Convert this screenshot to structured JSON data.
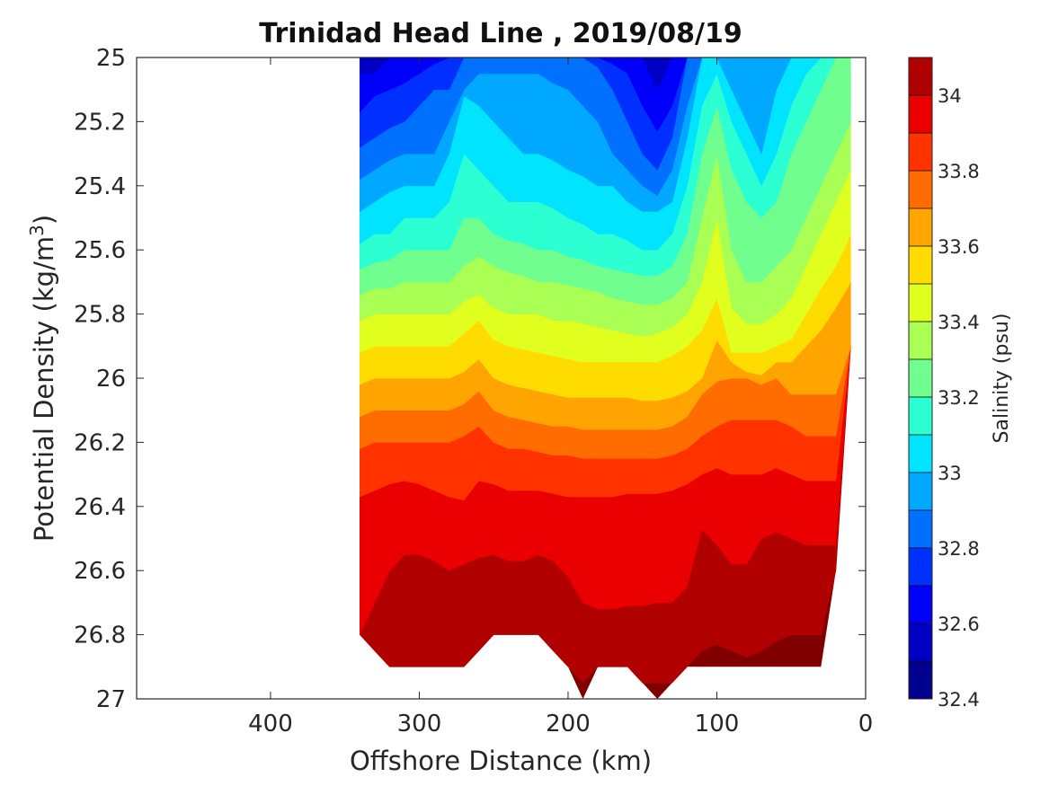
{
  "chart_data": {
    "type": "heatmap",
    "subtype": "filled-contour",
    "title": "Trinidad Head Line , 2019/08/19",
    "xlabel": "Offshore Distance (km)",
    "ylabel": "Potential Density (kg/m",
    "ylabel_sup": "3",
    "ylabel_close": ")",
    "xlim": [
      490,
      0
    ],
    "x_reversed": true,
    "ylim": [
      25,
      27
    ],
    "y_reversed": true,
    "xticks": [
      400,
      300,
      200,
      100,
      0
    ],
    "yticks": [
      "25",
      "25.2",
      "25.4",
      "25.6",
      "25.8",
      "26",
      "26.2",
      "26.4",
      "26.6",
      "26.8",
      "27"
    ],
    "colorbar": {
      "label": "Salinity (psu)",
      "range": [
        32.4,
        34.1
      ],
      "ticks": [
        "32.4",
        "32.6",
        "32.8",
        "33",
        "33.2",
        "33.4",
        "33.6",
        "33.8",
        "34"
      ],
      "levels": [
        {
          "from": 32.4,
          "to": 32.5,
          "color": "#00008f"
        },
        {
          "from": 32.5,
          "to": 32.6,
          "color": "#0000c4"
        },
        {
          "from": 32.6,
          "to": 32.7,
          "color": "#0000fa"
        },
        {
          "from": 32.7,
          "to": 32.8,
          "color": "#0030ff"
        },
        {
          "from": 32.8,
          "to": 32.9,
          "color": "#0070ff"
        },
        {
          "from": 32.9,
          "to": 33.0,
          "color": "#00a8ff"
        },
        {
          "from": 33.0,
          "to": 33.1,
          "color": "#00e4ff"
        },
        {
          "from": 33.1,
          "to": 33.2,
          "color": "#2cffd2"
        },
        {
          "from": 33.2,
          "to": 33.3,
          "color": "#70ff8e"
        },
        {
          "from": 33.3,
          "to": 33.4,
          "color": "#aaff54"
        },
        {
          "from": 33.4,
          "to": 33.5,
          "color": "#e0ff1e"
        },
        {
          "from": 33.5,
          "to": 33.6,
          "color": "#ffdc00"
        },
        {
          "from": 33.6,
          "to": 33.7,
          "color": "#ffa400"
        },
        {
          "from": 33.7,
          "to": 33.8,
          "color": "#ff6c00"
        },
        {
          "from": 33.8,
          "to": 33.9,
          "color": "#ff3200"
        },
        {
          "from": 33.9,
          "to": 34.0,
          "color": "#ea0000"
        },
        {
          "from": 34.0,
          "to": 34.1,
          "color": "#b00000"
        }
      ],
      "deep_color": "#800000"
    },
    "section": {
      "distances_km": [
        340,
        330,
        320,
        310,
        300,
        290,
        280,
        270,
        260,
        250,
        240,
        230,
        220,
        210,
        200,
        190,
        180,
        170,
        160,
        150,
        140,
        130,
        120,
        110,
        100,
        90,
        80,
        70,
        60,
        50,
        40,
        30,
        20,
        10
      ],
      "bottom_density": [
        26.8,
        26.85,
        26.9,
        26.9,
        26.9,
        26.9,
        26.9,
        26.9,
        26.85,
        26.8,
        26.8,
        26.8,
        26.8,
        26.85,
        26.9,
        27.0,
        26.9,
        26.9,
        26.9,
        26.95,
        27.0,
        26.95,
        26.9,
        26.9,
        26.9,
        26.9,
        26.9,
        26.9,
        26.9,
        26.9,
        26.9,
        26.9,
        26.6,
        25.9
      ],
      "top_density": [
        25.0,
        25.0,
        25.0,
        25.0,
        25.0,
        25.0,
        25.0,
        25.0,
        25.0,
        25.0,
        25.0,
        25.0,
        25.0,
        25.0,
        25.0,
        25.0,
        25.0,
        25.0,
        25.0,
        25.0,
        25.0,
        25.0,
        25.0,
        25.0,
        25.0,
        25.0,
        25.0,
        25.0,
        25.0,
        25.0,
        25.0,
        25.0,
        25.0,
        25.0
      ],
      "isohalines": [
        {
          "psu": 32.6,
          "density": [
            25.05,
            25.05,
            25.0,
            25.0,
            25.0,
            25.0,
            25.0,
            25.0,
            25.0,
            25.0,
            25.0,
            25.0,
            25.0,
            25.0,
            25.0,
            25.0,
            25.0,
            25.0,
            25.0,
            25.0,
            25.1,
            25.0,
            25.0,
            25.0,
            25.0,
            25.0,
            25.0,
            25.0,
            25.0,
            25.0,
            25.0,
            25.0,
            25.0,
            25.0
          ]
        },
        {
          "psu": 32.7,
          "density": [
            25.17,
            25.12,
            25.1,
            25.08,
            25.05,
            25.02,
            25.0,
            25.0,
            25.0,
            25.0,
            25.0,
            25.0,
            25.0,
            25.0,
            25.0,
            25.0,
            25.0,
            25.02,
            25.05,
            25.15,
            25.23,
            25.15,
            25.0,
            25.0,
            25.0,
            25.0,
            25.0,
            25.0,
            25.0,
            25.0,
            25.0,
            25.0,
            25.0,
            25.0
          ]
        },
        {
          "psu": 32.8,
          "density": [
            25.28,
            25.25,
            25.22,
            25.2,
            25.15,
            25.1,
            25.1,
            25.0,
            25.0,
            25.0,
            25.0,
            25.0,
            25.0,
            25.0,
            25.0,
            25.0,
            25.03,
            25.1,
            25.2,
            25.3,
            25.35,
            25.25,
            25.0,
            25.0,
            25.0,
            25.0,
            25.0,
            25.0,
            25.0,
            25.0,
            25.0,
            25.0,
            25.0,
            25.0
          ]
        },
        {
          "psu": 32.9,
          "density": [
            25.38,
            25.35,
            25.32,
            25.3,
            25.3,
            25.3,
            25.2,
            25.1,
            25.05,
            25.05,
            25.05,
            25.05,
            25.05,
            25.08,
            25.1,
            25.15,
            25.2,
            25.3,
            25.35,
            25.4,
            25.43,
            25.35,
            25.15,
            25.0,
            25.0,
            25.0,
            25.0,
            25.0,
            25.0,
            25.0,
            25.0,
            25.0,
            25.0,
            25.0
          ]
        },
        {
          "psu": 33.0,
          "density": [
            25.48,
            25.45,
            25.42,
            25.4,
            25.4,
            25.4,
            25.3,
            25.12,
            25.15,
            25.2,
            25.25,
            25.3,
            25.3,
            25.32,
            25.35,
            25.37,
            25.4,
            25.4,
            25.45,
            25.48,
            25.48,
            25.45,
            25.25,
            25.0,
            25.0,
            25.1,
            25.2,
            25.3,
            25.1,
            25.0,
            25.0,
            25.0,
            25.0,
            25.0
          ]
        },
        {
          "psu": 33.1,
          "density": [
            25.58,
            25.55,
            25.55,
            25.5,
            25.5,
            25.5,
            25.45,
            25.3,
            25.35,
            25.4,
            25.45,
            25.45,
            25.45,
            25.47,
            25.5,
            25.52,
            25.55,
            25.55,
            25.57,
            25.6,
            25.6,
            25.55,
            25.4,
            25.15,
            25.05,
            25.2,
            25.3,
            25.4,
            25.3,
            25.15,
            25.05,
            25.0,
            25.0,
            25.0
          ]
        },
        {
          "psu": 33.2,
          "density": [
            25.66,
            25.64,
            25.63,
            25.6,
            25.6,
            25.6,
            25.6,
            25.5,
            25.5,
            25.55,
            25.57,
            25.58,
            25.6,
            25.6,
            25.62,
            25.63,
            25.65,
            25.66,
            25.67,
            25.68,
            25.68,
            25.65,
            25.55,
            25.3,
            25.15,
            25.35,
            25.45,
            25.5,
            25.45,
            25.3,
            25.2,
            25.1,
            25.0,
            25.0
          ]
        },
        {
          "psu": 33.3,
          "density": [
            25.74,
            25.72,
            25.72,
            25.7,
            25.7,
            25.7,
            25.7,
            25.65,
            25.62,
            25.65,
            25.67,
            25.68,
            25.7,
            25.7,
            25.71,
            25.72,
            25.73,
            25.75,
            25.76,
            25.77,
            25.77,
            25.75,
            25.7,
            25.5,
            25.3,
            25.6,
            25.7,
            25.7,
            25.65,
            25.6,
            25.5,
            25.4,
            25.3,
            25.2
          ]
        },
        {
          "psu": 33.4,
          "density": [
            25.82,
            25.8,
            25.8,
            25.8,
            25.8,
            25.8,
            25.8,
            25.76,
            25.74,
            25.78,
            25.8,
            25.8,
            25.8,
            25.82,
            25.82,
            25.83,
            25.84,
            25.85,
            25.86,
            25.87,
            25.86,
            25.84,
            25.8,
            25.7,
            25.5,
            25.78,
            25.83,
            25.83,
            25.8,
            25.75,
            25.65,
            25.55,
            25.45,
            25.35
          ]
        },
        {
          "psu": 33.5,
          "density": [
            25.92,
            25.9,
            25.9,
            25.9,
            25.9,
            25.9,
            25.9,
            25.86,
            25.82,
            25.88,
            25.9,
            25.91,
            25.92,
            25.93,
            25.94,
            25.95,
            25.95,
            25.95,
            25.95,
            25.95,
            25.95,
            25.93,
            25.9,
            25.85,
            25.75,
            25.92,
            25.92,
            25.92,
            25.9,
            25.88,
            25.8,
            25.72,
            25.65,
            25.55
          ]
        },
        {
          "psu": 33.6,
          "density": [
            26.02,
            26.0,
            26.0,
            26.0,
            26.0,
            26.0,
            26.0,
            25.98,
            25.94,
            26.0,
            26.02,
            26.03,
            26.04,
            26.05,
            26.06,
            26.06,
            26.06,
            26.06,
            26.06,
            26.07,
            26.07,
            26.06,
            26.04,
            26.0,
            25.88,
            25.95,
            25.98,
            25.99,
            25.95,
            25.95,
            25.9,
            25.85,
            25.78,
            25.7
          ]
        },
        {
          "psu": 33.7,
          "density": [
            26.12,
            26.1,
            26.1,
            26.1,
            26.1,
            26.1,
            26.1,
            26.08,
            26.04,
            26.1,
            26.12,
            26.13,
            26.14,
            26.15,
            26.15,
            26.16,
            26.16,
            26.16,
            26.16,
            26.16,
            26.16,
            26.15,
            26.12,
            26.05,
            26.01,
            26.0,
            26.0,
            26.02,
            26.0,
            26.05,
            26.05,
            26.05,
            26.05,
            26.0
          ]
        },
        {
          "psu": 33.8,
          "density": [
            26.22,
            26.2,
            26.2,
            26.2,
            26.2,
            26.2,
            26.2,
            26.18,
            26.15,
            26.2,
            26.22,
            26.22,
            26.23,
            26.24,
            26.24,
            26.25,
            26.25,
            26.25,
            26.25,
            26.25,
            26.25,
            26.24,
            26.22,
            26.18,
            26.15,
            26.13,
            26.13,
            26.13,
            26.13,
            26.15,
            26.18,
            26.18,
            26.18,
            26.18
          ]
        },
        {
          "psu": 33.9,
          "density": [
            26.37,
            26.35,
            26.33,
            26.32,
            26.33,
            26.35,
            26.37,
            26.38,
            26.32,
            26.33,
            26.35,
            26.35,
            26.35,
            26.36,
            26.37,
            26.37,
            26.37,
            26.37,
            26.36,
            26.36,
            26.36,
            26.35,
            26.33,
            26.3,
            26.28,
            26.3,
            26.3,
            26.3,
            26.28,
            26.3,
            26.32,
            26.32,
            26.32,
            26.32
          ]
        },
        {
          "psu": 34.0,
          "density": [
            26.8,
            26.7,
            26.6,
            26.55,
            26.55,
            26.57,
            26.6,
            26.58,
            26.56,
            26.55,
            26.57,
            26.57,
            26.55,
            26.57,
            26.62,
            26.7,
            26.72,
            26.72,
            26.71,
            26.71,
            26.7,
            26.7,
            26.65,
            26.47,
            26.52,
            26.58,
            26.58,
            26.5,
            26.48,
            26.5,
            26.52,
            26.52,
            26.52,
            26.52
          ]
        },
        {
          "psu": 34.1,
          "density": [
            26.95,
            26.95,
            26.95,
            26.95,
            26.95,
            26.95,
            26.95,
            26.95,
            26.95,
            26.95,
            26.95,
            26.95,
            26.95,
            26.95,
            26.95,
            26.95,
            26.95,
            26.95,
            26.95,
            26.95,
            26.95,
            26.95,
            26.9,
            26.85,
            26.83,
            26.85,
            26.87,
            26.85,
            26.82,
            26.8,
            26.8,
            26.8,
            26.8,
            26.8
          ]
        }
      ]
    }
  }
}
